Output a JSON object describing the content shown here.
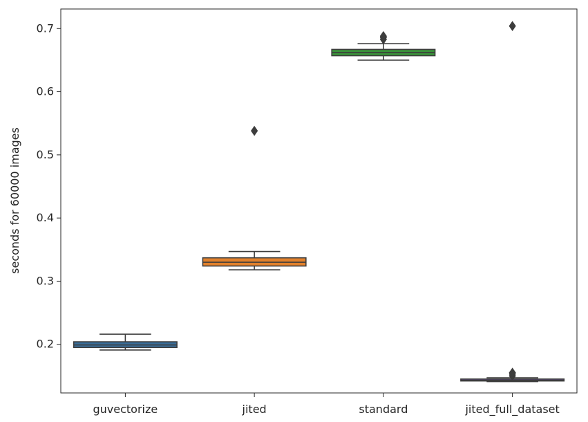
{
  "chart_data": {
    "type": "box",
    "title": "",
    "xlabel": "",
    "ylabel": "seconds for 60000 images",
    "categories": [
      "guvectorize",
      "jited",
      "standard",
      "jited_full_dataset"
    ],
    "ylim": [
      0.123,
      0.731
    ],
    "yticks": [
      0.2,
      0.3,
      0.4,
      0.5,
      0.6,
      0.7
    ],
    "ytick_labels": [
      "0.2",
      "0.3",
      "0.4",
      "0.5",
      "0.6",
      "0.7"
    ],
    "grid": false,
    "boxes": [
      {
        "category": "guvectorize",
        "color": "#3a6e9a",
        "whisker_low": 0.191,
        "q1": 0.195,
        "median": 0.199,
        "q3": 0.204,
        "whisker_high": 0.216,
        "outliers": []
      },
      {
        "category": "jited",
        "color": "#e1812c",
        "whisker_low": 0.318,
        "q1": 0.324,
        "median": 0.33,
        "q3": 0.337,
        "whisker_high": 0.347,
        "outliers": [
          0.538
        ]
      },
      {
        "category": "standard",
        "color": "#3a923a",
        "whisker_low": 0.65,
        "q1": 0.657,
        "median": 0.662,
        "q3": 0.667,
        "whisker_high": 0.676,
        "outliers": [
          0.683,
          0.686,
          0.688
        ]
      },
      {
        "category": "jited_full_dataset",
        "color": "#6b4e9c",
        "whisker_low": 0.141,
        "q1": 0.142,
        "median": 0.143,
        "q3": 0.145,
        "whisker_high": 0.147,
        "outliers": [
          0.15,
          0.153,
          0.155,
          0.704
        ]
      }
    ]
  }
}
